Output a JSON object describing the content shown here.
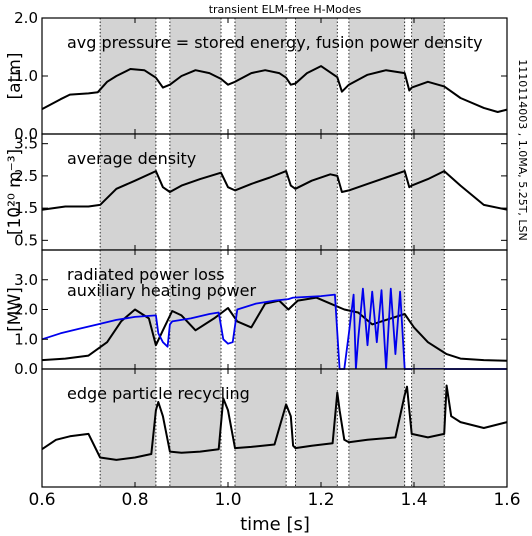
{
  "chart_data": {
    "type": "line",
    "title": "transient ELM-free H-Modes",
    "side_annotation": "1110114003 , 1.0MA, 5.25T, LSN",
    "xlabel": "time [s]",
    "xlim": [
      0.6,
      1.6
    ],
    "xticks": [
      "0.6",
      "0.8",
      "1.0",
      "1.2",
      "1.4",
      "1.6"
    ],
    "shaded_intervals": [
      [
        0.725,
        0.845
      ],
      [
        0.875,
        0.985
      ],
      [
        1.015,
        1.125
      ],
      [
        1.145,
        1.235
      ],
      [
        1.26,
        1.38
      ],
      [
        1.395,
        1.465
      ]
    ],
    "colors": {
      "black": "#000000",
      "blue": "#0000ee",
      "shade": "#d3d3d3"
    },
    "panels": [
      {
        "label": "avg pressure = stored energy, fusion power density",
        "ylabel": "[atm]",
        "ylim": [
          0.0,
          2.0
        ],
        "yticks": [
          "0.0",
          "1.0",
          "2.0"
        ],
        "series": [
          {
            "color": "#000000",
            "x": [
              0.6,
              0.64,
              0.66,
              0.7,
              0.72,
              0.74,
              0.76,
              0.79,
              0.82,
              0.845,
              0.86,
              0.875,
              0.9,
              0.93,
              0.96,
              0.985,
              1.0,
              1.015,
              1.05,
              1.08,
              1.11,
              1.125,
              1.135,
              1.145,
              1.17,
              1.2,
              1.235,
              1.245,
              1.26,
              1.3,
              1.34,
              1.38,
              1.39,
              1.395,
              1.43,
              1.465,
              1.5,
              1.55,
              1.58,
              1.6
            ],
            "y": [
              0.43,
              0.6,
              0.68,
              0.7,
              0.72,
              0.9,
              1.0,
              1.12,
              1.1,
              0.97,
              0.8,
              0.85,
              1.0,
              1.1,
              1.05,
              0.95,
              0.85,
              0.9,
              1.05,
              1.1,
              1.05,
              0.97,
              0.85,
              0.87,
              1.05,
              1.17,
              0.98,
              0.73,
              0.85,
              1.02,
              1.1,
              1.05,
              0.75,
              0.8,
              0.9,
              0.82,
              0.62,
              0.45,
              0.38,
              0.42
            ]
          }
        ]
      },
      {
        "label": "average density",
        "ylabel": "[10²⁰ m⁻³]",
        "ylim": [
          0.2,
          3.8
        ],
        "yticks": [
          "0.5",
          "1.5",
          "2.5",
          "3.5"
        ],
        "series": [
          {
            "color": "#000000",
            "x": [
              0.6,
              0.65,
              0.7,
              0.725,
              0.76,
              0.8,
              0.845,
              0.86,
              0.875,
              0.9,
              0.94,
              0.985,
              1.0,
              1.015,
              1.05,
              1.09,
              1.125,
              1.135,
              1.145,
              1.18,
              1.22,
              1.235,
              1.245,
              1.26,
              1.3,
              1.34,
              1.38,
              1.39,
              1.395,
              1.43,
              1.465,
              1.5,
              1.55,
              1.6
            ],
            "y": [
              1.45,
              1.55,
              1.55,
              1.6,
              2.1,
              2.35,
              2.65,
              2.15,
              2.0,
              2.2,
              2.4,
              2.6,
              2.15,
              2.05,
              2.25,
              2.45,
              2.65,
              2.2,
              2.1,
              2.35,
              2.55,
              2.5,
              2.0,
              2.05,
              2.25,
              2.45,
              2.65,
              2.15,
              2.2,
              2.4,
              2.65,
              2.2,
              1.6,
              1.45
            ]
          }
        ]
      },
      {
        "label": "radiated power loss",
        "label2": "auxiliary heating power",
        "ylabel": "[MW]",
        "ylim": [
          0.0,
          4.0
        ],
        "yticks": [
          "0.0",
          "1.0",
          "2.0",
          "3.0"
        ],
        "series": [
          {
            "color": "#000000",
            "x": [
              0.6,
              0.65,
              0.7,
              0.74,
              0.77,
              0.8,
              0.83,
              0.845,
              0.86,
              0.88,
              0.9,
              0.93,
              0.97,
              1.0,
              1.02,
              1.05,
              1.08,
              1.11,
              1.13,
              1.15,
              1.19,
              1.22,
              1.25,
              1.28,
              1.31,
              1.35,
              1.38,
              1.4,
              1.43,
              1.47,
              1.5,
              1.55,
              1.6
            ],
            "y": [
              0.3,
              0.35,
              0.45,
              0.9,
              1.6,
              2.0,
              1.7,
              0.8,
              1.3,
              1.95,
              1.8,
              1.3,
              1.7,
              2.05,
              1.6,
              1.4,
              2.2,
              2.3,
              2.0,
              2.3,
              2.4,
              2.2,
              2.0,
              1.9,
              1.5,
              1.7,
              1.85,
              1.4,
              0.9,
              0.5,
              0.35,
              0.3,
              0.28
            ]
          },
          {
            "color": "#0000ee",
            "x": [
              0.6,
              0.64,
              0.68,
              0.72,
              0.76,
              0.8,
              0.845,
              0.85,
              0.86,
              0.87,
              0.875,
              0.88,
              0.92,
              0.96,
              0.98,
              0.99,
              1.0,
              1.01,
              1.02,
              1.06,
              1.1,
              1.13,
              1.14,
              1.2,
              1.23,
              1.24,
              1.25,
              1.26,
              1.27,
              1.275,
              1.28,
              1.29,
              1.3,
              1.31,
              1.32,
              1.33,
              1.34,
              1.35,
              1.36,
              1.37,
              1.38,
              1.39,
              1.395,
              1.4,
              1.6
            ],
            "y": [
              1.0,
              1.2,
              1.35,
              1.5,
              1.65,
              1.75,
              1.8,
              1.2,
              0.9,
              0.75,
              1.5,
              1.6,
              1.7,
              1.85,
              1.9,
              1.0,
              0.85,
              0.9,
              2.0,
              2.2,
              2.3,
              2.35,
              2.4,
              2.45,
              2.5,
              0.0,
              0.0,
              1.2,
              2.5,
              0.0,
              1.0,
              2.7,
              0.8,
              2.6,
              0.9,
              2.65,
              0.0,
              2.7,
              0.5,
              2.6,
              0.0,
              0.0,
              0.0,
              0.0,
              0.0
            ]
          }
        ]
      },
      {
        "label": "edge particle recycling",
        "ylabel": "",
        "ylim": [
          0.0,
          10.0
        ],
        "yticks": [],
        "series": [
          {
            "color": "#000000",
            "x": [
              0.6,
              0.63,
              0.66,
              0.7,
              0.725,
              0.76,
              0.8,
              0.835,
              0.845,
              0.85,
              0.86,
              0.875,
              0.9,
              0.94,
              0.98,
              0.99,
              1.0,
              1.015,
              1.05,
              1.1,
              1.125,
              1.135,
              1.14,
              1.145,
              1.18,
              1.225,
              1.235,
              1.24,
              1.25,
              1.26,
              1.3,
              1.36,
              1.38,
              1.385,
              1.395,
              1.43,
              1.465,
              1.47,
              1.48,
              1.5,
              1.55,
              1.6
            ],
            "y": [
              3.2,
              4.0,
              4.3,
              4.5,
              2.5,
              2.3,
              2.5,
              2.8,
              6.5,
              7.2,
              6.0,
              3.0,
              2.9,
              3.0,
              3.2,
              7.5,
              6.5,
              3.3,
              3.4,
              3.6,
              7.0,
              6.0,
              3.5,
              3.3,
              3.5,
              3.7,
              8.0,
              6.5,
              4.0,
              3.8,
              4.0,
              4.2,
              7.8,
              8.5,
              4.5,
              4.2,
              4.5,
              8.6,
              6.0,
              5.5,
              5.0,
              5.5
            ]
          }
        ]
      }
    ]
  }
}
